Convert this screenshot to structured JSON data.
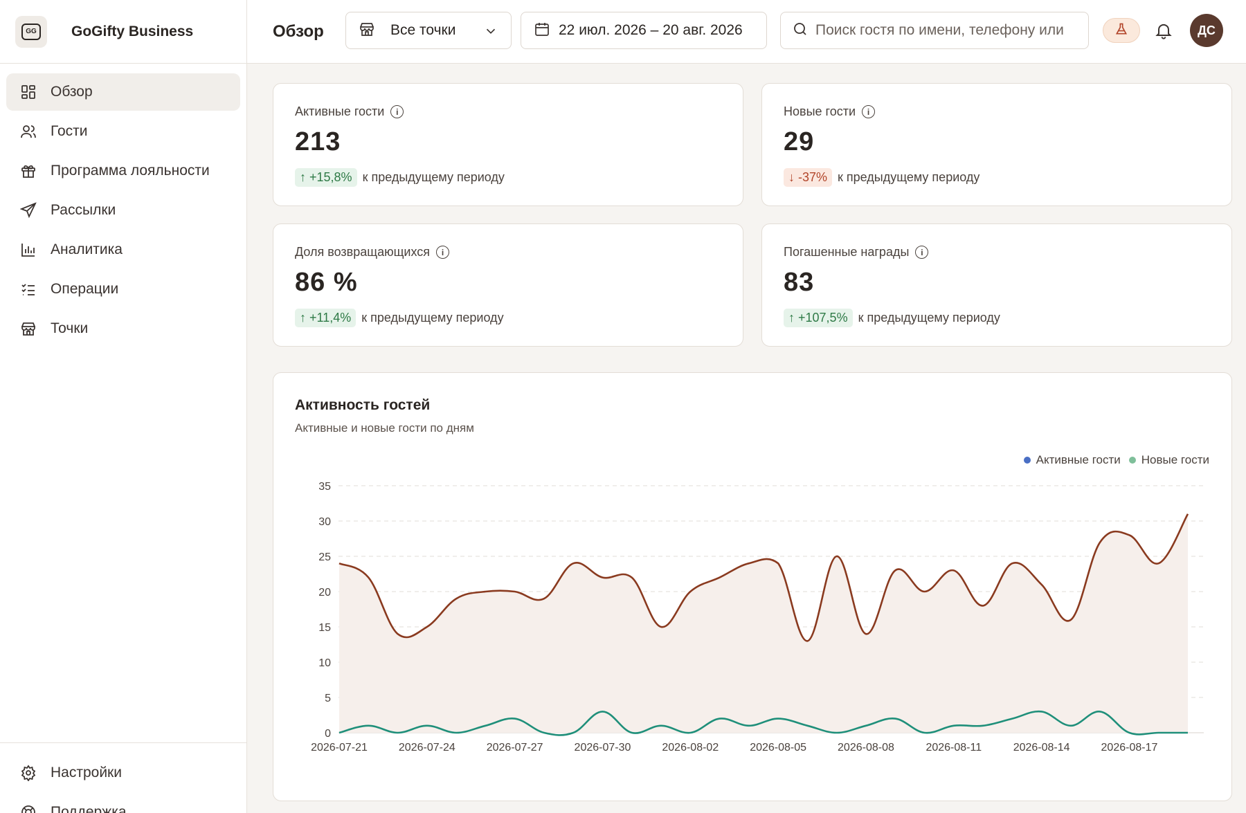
{
  "brand": {
    "logo_text": "GG",
    "name": "GoGifty Business"
  },
  "sidebar": {
    "items": [
      {
        "label": "Обзор",
        "icon": "dashboard-icon",
        "active": true
      },
      {
        "label": "Гости",
        "icon": "users-icon"
      },
      {
        "label": "Программа лояльности",
        "icon": "gift-icon"
      },
      {
        "label": "Рассылки",
        "icon": "send-icon"
      },
      {
        "label": "Аналитика",
        "icon": "bar-chart-icon"
      },
      {
        "label": "Операции",
        "icon": "checklist-icon"
      },
      {
        "label": "Точки",
        "icon": "store-icon"
      }
    ],
    "bottom_items": [
      {
        "label": "Настройки",
        "icon": "gear-icon"
      },
      {
        "label": "Поддержка",
        "icon": "lifebuoy-icon"
      }
    ]
  },
  "header": {
    "title": "Обзор",
    "location_select": "Все точки",
    "date_range": "22 июл. 2026 – 20 авг. 2026",
    "search_placeholder": "Поиск гостя по имени, телефону или",
    "avatar_initials": "ДС"
  },
  "stats": [
    {
      "title": "Активные гости",
      "value": "213",
      "delta": "+15,8%",
      "direction": "up",
      "note": "к предыдущему периоду"
    },
    {
      "title": "Новые гости",
      "value": "29",
      "delta": "-37%",
      "direction": "down",
      "note": "к предыдущему периоду"
    },
    {
      "title": "Доля возвращающихся",
      "value": "86 %",
      "delta": "+11,4%",
      "direction": "up",
      "note": "к предыдущему периоду"
    },
    {
      "title": "Погашенные награды",
      "value": "83",
      "delta": "+107,5%",
      "direction": "up",
      "note": "к предыдущему периоду"
    }
  ],
  "chart": {
    "title": "Активность гостей",
    "subtitle": "Активные и новые гости по дням"
  },
  "chart_data": {
    "type": "line",
    "x": [
      "2026-07-21",
      "2026-07-22",
      "2026-07-23",
      "2026-07-24",
      "2026-07-25",
      "2026-07-26",
      "2026-07-27",
      "2026-07-28",
      "2026-07-29",
      "2026-07-30",
      "2026-07-31",
      "2026-08-01",
      "2026-08-02",
      "2026-08-03",
      "2026-08-04",
      "2026-08-05",
      "2026-08-06",
      "2026-08-07",
      "2026-08-08",
      "2026-08-09",
      "2026-08-10",
      "2026-08-11",
      "2026-08-12",
      "2026-08-13",
      "2026-08-14",
      "2026-08-15",
      "2026-08-16",
      "2026-08-17",
      "2026-08-18",
      "2026-08-19"
    ],
    "x_ticks": [
      "2026-07-21",
      "2026-07-24",
      "2026-07-27",
      "2026-07-30",
      "2026-08-02",
      "2026-08-05",
      "2026-08-08",
      "2026-08-11",
      "2026-08-14",
      "2026-08-17"
    ],
    "series": [
      {
        "name": "Активные гости",
        "color": "#8a3a1f",
        "legend_color": "#4a6fc4",
        "area": true,
        "values": [
          24,
          22,
          14,
          15,
          19,
          20,
          20,
          19,
          24,
          22,
          22,
          15,
          20,
          22,
          24,
          24,
          13,
          25,
          14,
          23,
          20,
          23,
          18,
          24,
          21,
          16,
          27,
          28,
          24,
          31
        ]
      },
      {
        "name": "Новые гости",
        "color": "#1f8f7a",
        "legend_color": "#7fbf9a",
        "area": false,
        "values": [
          0,
          1,
          0,
          1,
          0,
          1,
          2,
          0,
          0,
          3,
          0,
          1,
          0,
          2,
          1,
          2,
          1,
          0,
          1,
          2,
          0,
          1,
          1,
          2,
          3,
          1,
          3,
          0,
          0,
          0
        ]
      }
    ],
    "ylim": [
      0,
      35
    ],
    "yticks": [
      0,
      5,
      10,
      15,
      20,
      25,
      30,
      35
    ],
    "grid": true,
    "legend_position": "top-right"
  }
}
